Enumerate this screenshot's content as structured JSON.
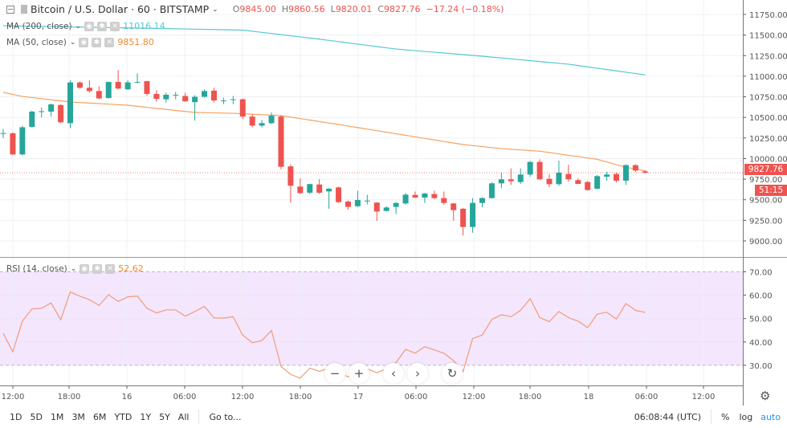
{
  "header": {
    "symbol": "Bitcoin / U.S. Dollar · 60 · BITSTAMP",
    "open_label": "O",
    "open": "9845.00",
    "high_label": "H",
    "high": "9860.56",
    "low_label": "L",
    "low": "9820.01",
    "close_label": "C",
    "close": "9827.76",
    "change": "−17.24 (−0.18%)"
  },
  "indicators": {
    "ma200": {
      "name": "MA (200, close)",
      "value": "11016.14",
      "color": "#55c9cf"
    },
    "ma50": {
      "name": "MA (50, close)",
      "value": "9851.80",
      "color": "#f6a260"
    },
    "rsi": {
      "name": "RSI (14, close)",
      "value": "52.62",
      "color": "#f29c78"
    }
  },
  "price_tag": {
    "price": "9827.76",
    "countdown": "51:15"
  },
  "price_axis": [
    "11750.00",
    "11500.00",
    "11250.00",
    "11000.00",
    "10750.00",
    "10500.00",
    "10250.00",
    "10000.00",
    "9750.00",
    "9500.00",
    "9250.00",
    "9000.00"
  ],
  "rsi_axis": [
    "70.00",
    "60.00",
    "50.00",
    "40.00",
    "30.00"
  ],
  "time_axis": [
    "12:00",
    "18:00",
    "16",
    "06:00",
    "12:00",
    "18:00",
    "17",
    "06:00",
    "12:00",
    "18:00",
    "18",
    "06:00",
    "12:00"
  ],
  "bottom": {
    "ranges": [
      "1D",
      "5D",
      "1M",
      "3M",
      "6M",
      "YTD",
      "1Y",
      "5Y",
      "All"
    ],
    "goto": "Go to...",
    "clock": "06:08:44 (UTC)",
    "percent": "%",
    "log": "log",
    "auto": "auto"
  },
  "nav_buttons": {
    "zoom_out": "−",
    "zoom_in": "+",
    "back": "‹",
    "forward": "›",
    "reset": "↻"
  },
  "colors": {
    "up": "#26a69a",
    "down": "#ef5350",
    "rsi_band": "#f3e6fd"
  },
  "chart_data": {
    "type": "candlestick",
    "interval": "60",
    "ylim": [
      8850,
      11850
    ],
    "rsi_ylim": [
      22,
      76
    ],
    "ohlc": [
      [
        10300,
        10360,
        10250,
        10310
      ],
      [
        10307,
        10320,
        10040,
        10050
      ],
      [
        10050,
        10400,
        10040,
        10380
      ],
      [
        10385,
        10580,
        10370,
        10570
      ],
      [
        10570,
        10620,
        10500,
        10575
      ],
      [
        10570,
        10670,
        10510,
        10658
      ],
      [
        10650,
        10660,
        10430,
        10440
      ],
      [
        10430,
        10950,
        10370,
        10924
      ],
      [
        10924,
        10935,
        10850,
        10860
      ],
      [
        10860,
        10950,
        10800,
        10820
      ],
      [
        10820,
        10880,
        10720,
        10730
      ],
      [
        10735,
        10935,
        10730,
        10930
      ],
      [
        10930,
        11075,
        10840,
        10850
      ],
      [
        10840,
        10950,
        10835,
        10925
      ],
      [
        10925,
        11035,
        10915,
        10930
      ],
      [
        10940,
        10945,
        10760,
        10785
      ],
      [
        10785,
        10830,
        10690,
        10725
      ],
      [
        10720,
        10800,
        10680,
        10775
      ],
      [
        10770,
        10810,
        10720,
        10775
      ],
      [
        10760,
        10800,
        10690,
        10695
      ],
      [
        10685,
        10770,
        10460,
        10750
      ],
      [
        10750,
        10840,
        10740,
        10820
      ],
      [
        10825,
        10860,
        10680,
        10705
      ],
      [
        10700,
        10740,
        10660,
        10705
      ],
      [
        10715,
        10760,
        10660,
        10720
      ],
      [
        10720,
        10730,
        10480,
        10510
      ],
      [
        10510,
        10540,
        10380,
        10400
      ],
      [
        10400,
        10470,
        10380,
        10430
      ],
      [
        10430,
        10560,
        10420,
        10520
      ],
      [
        10510,
        10525,
        9870,
        9900
      ],
      [
        9905,
        9930,
        9465,
        9670
      ],
      [
        9660,
        9760,
        9570,
        9580
      ],
      [
        9585,
        9695,
        9570,
        9690
      ],
      [
        9685,
        9750,
        9570,
        9585
      ],
      [
        9601,
        9640,
        9390,
        9634
      ],
      [
        9650,
        9660,
        9460,
        9471
      ],
      [
        9478,
        9490,
        9380,
        9413
      ],
      [
        9422,
        9610,
        9410,
        9497
      ],
      [
        9485,
        9560,
        9445,
        9490
      ],
      [
        9465,
        9470,
        9244,
        9357
      ],
      [
        9364,
        9420,
        9355,
        9406
      ],
      [
        9413,
        9470,
        9325,
        9461
      ],
      [
        9455,
        9580,
        9440,
        9562
      ],
      [
        9559,
        9600,
        9520,
        9526
      ],
      [
        9526,
        9585,
        9460,
        9575
      ],
      [
        9569,
        9610,
        9510,
        9520
      ],
      [
        9520,
        9600,
        9440,
        9461
      ],
      [
        9455,
        9460,
        9245,
        9374
      ],
      [
        9390,
        9400,
        9065,
        9169
      ],
      [
        9169,
        9520,
        9100,
        9461
      ],
      [
        9461,
        9530,
        9410,
        9520
      ],
      [
        9520,
        9710,
        9515,
        9699
      ],
      [
        9699,
        9830,
        9640,
        9748
      ],
      [
        9748,
        9880,
        9680,
        9725
      ],
      [
        9715,
        9880,
        9690,
        9806
      ],
      [
        9806,
        9970,
        9780,
        9959
      ],
      [
        9959,
        9990,
        9740,
        9748
      ],
      [
        9754,
        9810,
        9650,
        9689
      ],
      [
        9689,
        9975,
        9670,
        9829
      ],
      [
        9812,
        9925,
        9720,
        9748
      ],
      [
        9738,
        9760,
        9690,
        9692
      ],
      [
        9715,
        9730,
        9610,
        9618
      ],
      [
        9634,
        9800,
        9625,
        9787
      ],
      [
        9780,
        9840,
        9730,
        9806
      ],
      [
        9812,
        9830,
        9710,
        9731
      ],
      [
        9731,
        9930,
        9680,
        9920
      ],
      [
        9920,
        9930,
        9840,
        9855
      ],
      [
        9845,
        9860.56,
        9820.01,
        9827.76
      ]
    ],
    "ma50_points": [
      [
        1,
        10804
      ],
      [
        3,
        10755
      ],
      [
        8,
        10687
      ],
      [
        14,
        10648
      ],
      [
        17,
        10609
      ],
      [
        21,
        10560
      ],
      [
        25,
        10550
      ],
      [
        30,
        10521
      ],
      [
        36,
        10414
      ],
      [
        49,
        10170
      ],
      [
        53,
        10121
      ],
      [
        57,
        10089
      ],
      [
        63,
        9991
      ],
      [
        66,
        9894
      ],
      [
        68,
        9851.8
      ]
    ],
    "ma200_points": [
      [
        1,
        11613
      ],
      [
        15,
        11585
      ],
      [
        26,
        11560
      ],
      [
        34,
        11450
      ],
      [
        42,
        11330
      ],
      [
        51,
        11243
      ],
      [
        60,
        11146
      ],
      [
        68,
        11016.14
      ]
    ],
    "rsi": [
      43.7,
      35.8,
      48.9,
      54.1,
      54.4,
      56.7,
      49.5,
      61.4,
      59.6,
      58.1,
      55.6,
      60.2,
      57.3,
      59.3,
      59.6,
      54.4,
      52.4,
      53.7,
      53.7,
      51.0,
      53.0,
      55.2,
      50.3,
      50.2,
      50.8,
      42.9,
      39.7,
      40.6,
      44.9,
      29.5,
      26.1,
      24.5,
      28.8,
      27.4,
      28.8,
      27.0,
      25.0,
      29.5,
      28.5,
      26.8,
      28.5,
      31.2,
      36.8,
      35.2,
      38.0,
      36.6,
      35.1,
      32.0,
      27.3,
      41.5,
      42.9,
      49.6,
      51.6,
      50.8,
      53.5,
      58.5,
      50.4,
      48.7,
      53.0,
      50.4,
      48.9,
      46.1,
      51.9,
      52.7,
      49.8,
      56.4,
      53.5,
      52.62
    ],
    "rsi_bands": [
      30,
      70
    ]
  }
}
